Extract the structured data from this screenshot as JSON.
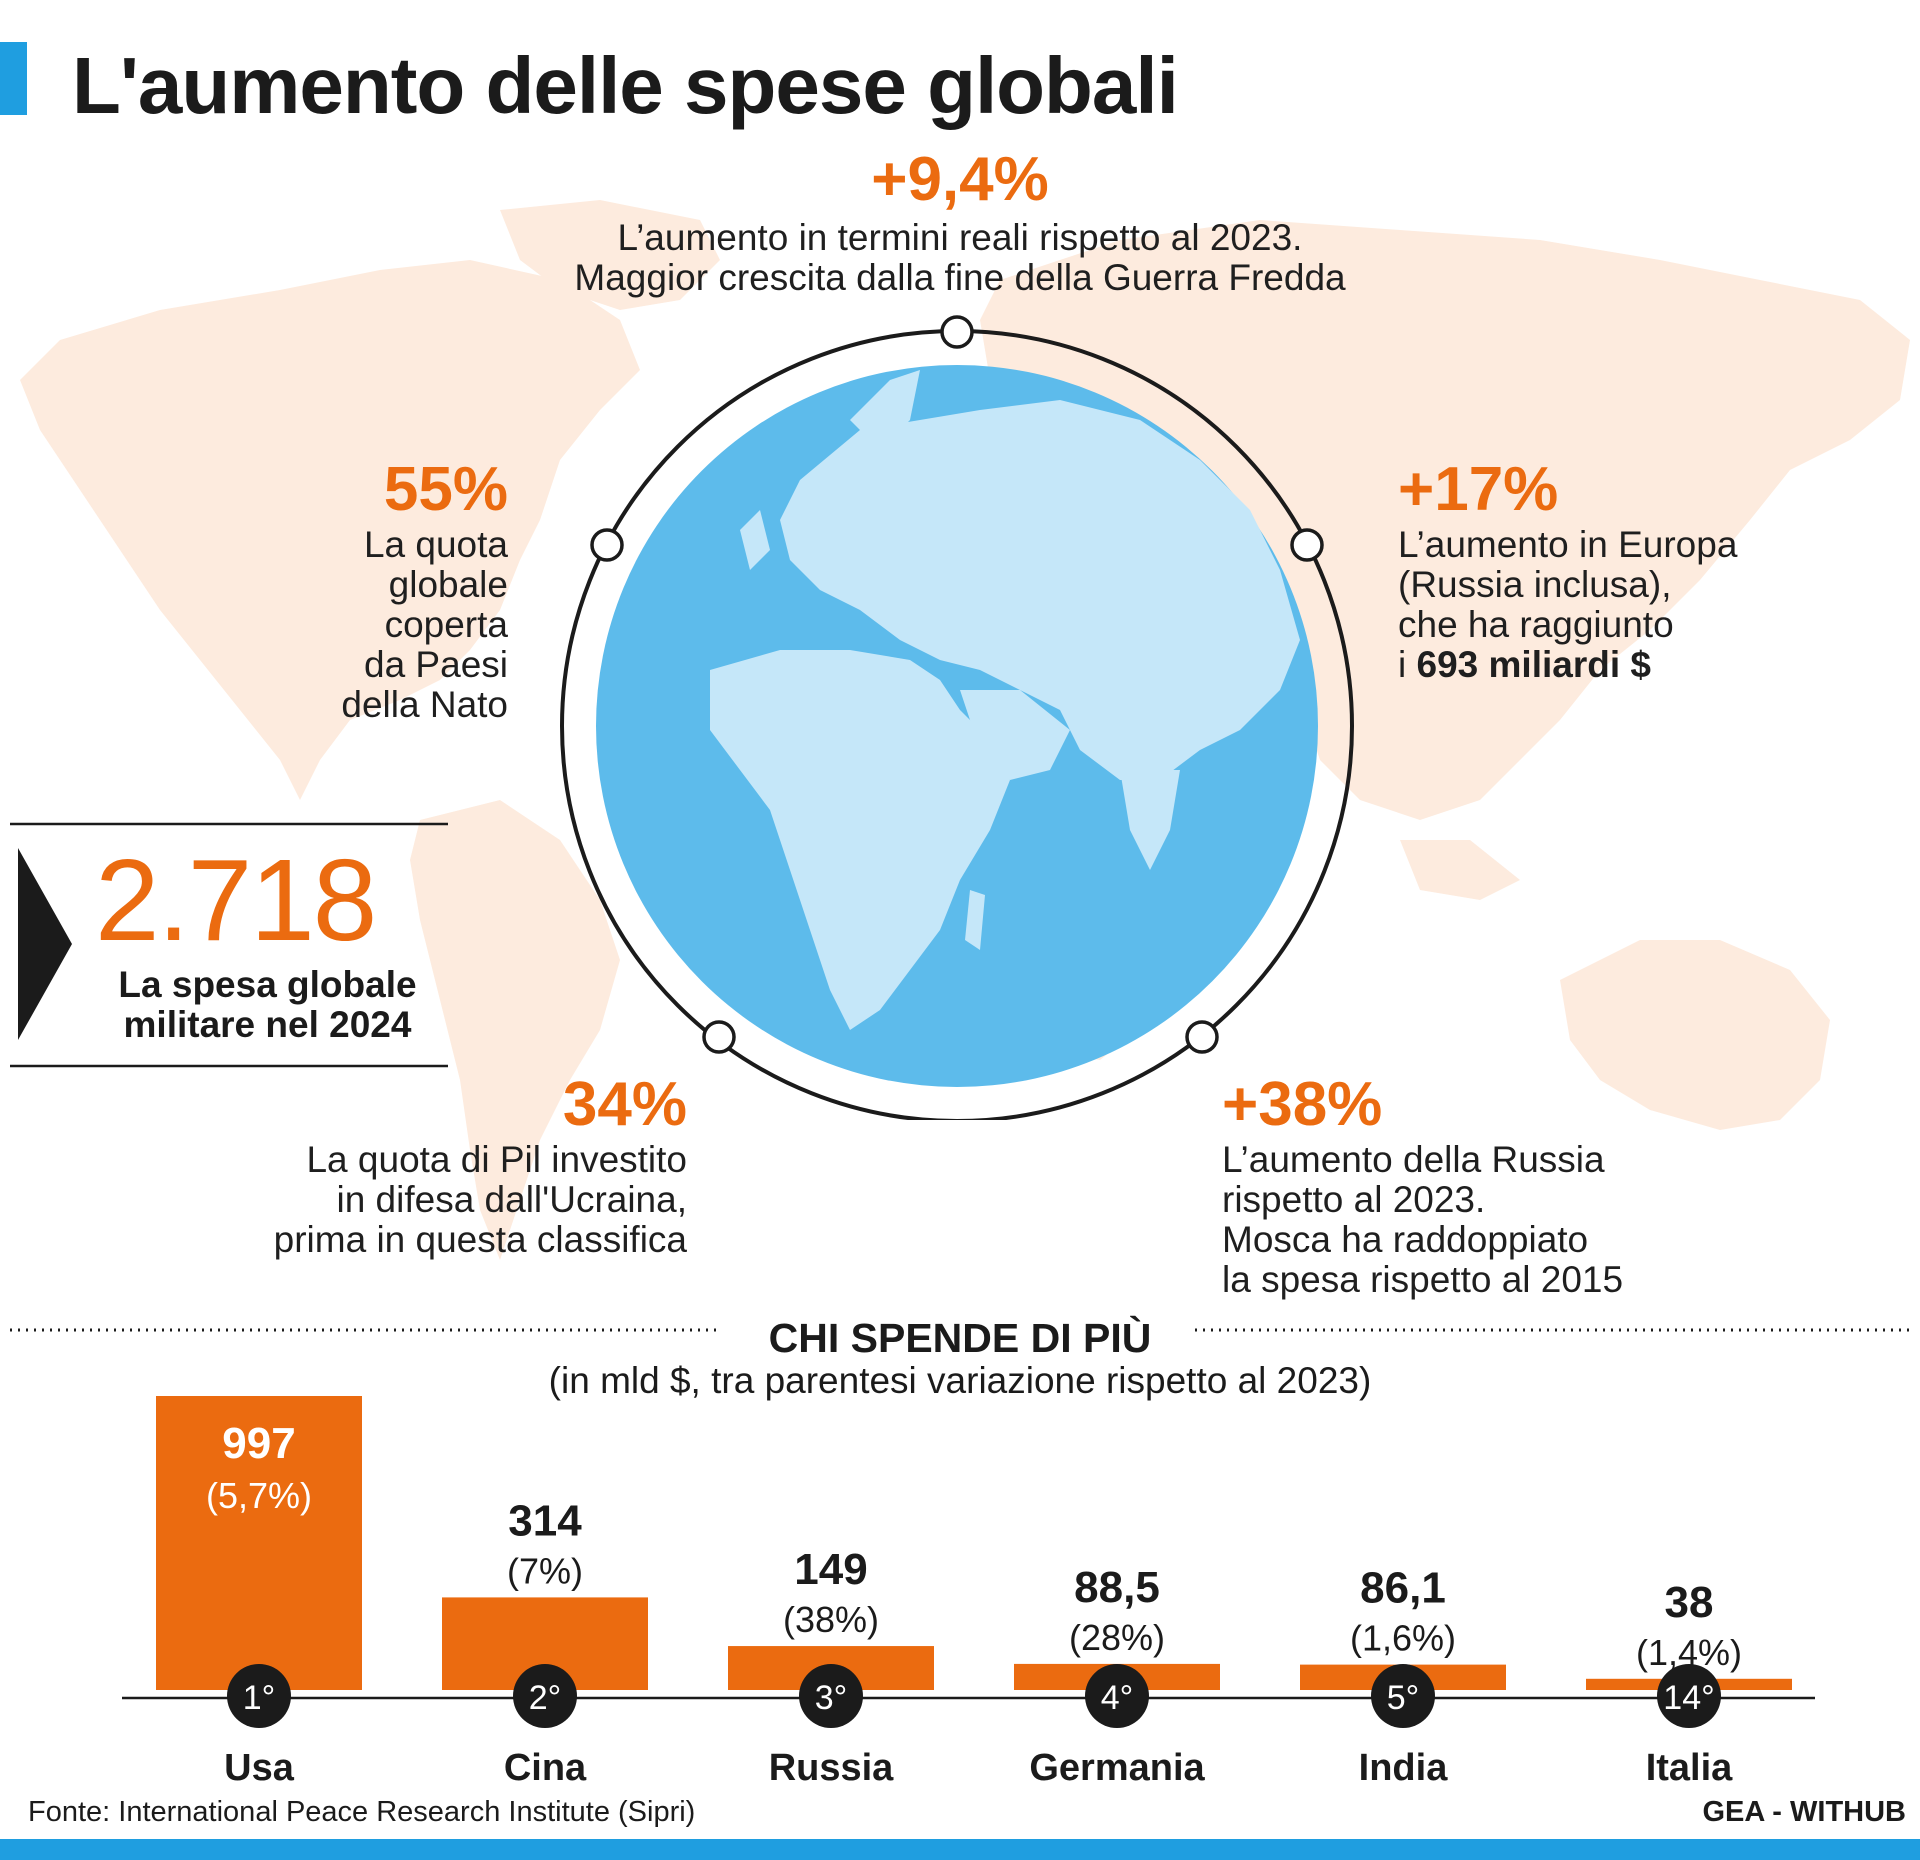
{
  "title": "L'aumento delle spese globali",
  "stats": {
    "top": {
      "value": "+9,4%",
      "line1": "L’aumento in termini reali rispetto al 2023.",
      "line2": "Maggior crescita dalla fine della Guerra Fredda"
    },
    "nato": {
      "value": "55%",
      "lines": [
        "La quota",
        "globale",
        "coperta",
        "da Paesi",
        "della Nato"
      ]
    },
    "europe": {
      "value": "+17%",
      "lines": [
        "L’aumento in Europa",
        "(Russia inclusa),",
        "che ha raggiunto"
      ],
      "last_prefix": "i ",
      "last_bold": "693 miliardi $"
    },
    "ukraine": {
      "value": "34%",
      "lines": [
        "La quota di Pil investito",
        "in difesa dall'Ucraina,",
        "prima in questa classifica"
      ]
    },
    "russia": {
      "value": "+38%",
      "lines": [
        "L’aumento della Russia",
        "rispetto al 2023.",
        "Mosca ha raddoppiato",
        "la spesa rispetto al 2015"
      ]
    }
  },
  "total": {
    "value": "2.718",
    "label_line1": "La spesa globale",
    "label_line2": "militare nel 2024"
  },
  "colors": {
    "accent": "#eb6b10",
    "blue": "#1f9ee0",
    "ocean": "#5dbbeb",
    "land": "#c5e7f9",
    "map": "#fdebde"
  },
  "chart_data": {
    "type": "bar",
    "title": "CHI SPENDE DI PIÙ",
    "subtitle": "(in mld $, tra parentesi variazione rispetto al 2023)",
    "categories": [
      "Usa",
      "Cina",
      "Russia",
      "Germania",
      "India",
      "Italia"
    ],
    "values": [
      997,
      314,
      149,
      88.5,
      86.1,
      38
    ],
    "value_labels": [
      "997",
      "314",
      "149",
      "88,5",
      "86,1",
      "38"
    ],
    "changes": [
      "(5,7%)",
      "(7%)",
      "(38%)",
      "(28%)",
      "(1,6%)",
      "(1,4%)"
    ],
    "ranks": [
      "1°",
      "2°",
      "3°",
      "4°",
      "5°",
      "14°"
    ],
    "ylim": [
      0,
      997
    ],
    "grid": false,
    "legend": "none"
  },
  "source": "Fonte: International Peace Research Institute (Sipri)",
  "credit": "GEA - WITHUB"
}
